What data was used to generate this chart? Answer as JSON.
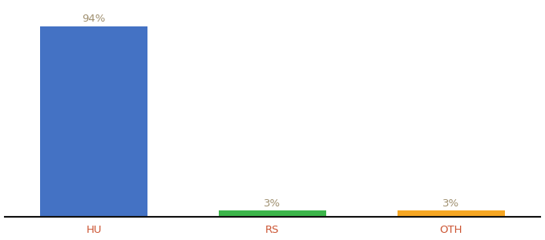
{
  "categories": [
    "HU",
    "RS",
    "OTH"
  ],
  "values": [
    94,
    3,
    3
  ],
  "bar_colors": [
    "#4472c4",
    "#3cb54a",
    "#f5a623"
  ],
  "labels": [
    "94%",
    "3%",
    "3%"
  ],
  "label_color": "#a09070",
  "xlabel_color": "#cc5533",
  "background_color": "#ffffff",
  "ylim": [
    0,
    105
  ],
  "bar_width": 0.6,
  "label_fontsize": 9.5,
  "tick_fontsize": 9.5,
  "figwidth": 6.8,
  "figheight": 3.0,
  "dpi": 100,
  "x_positions": [
    0,
    1,
    2
  ],
  "xlim": [
    -0.5,
    2.5
  ]
}
